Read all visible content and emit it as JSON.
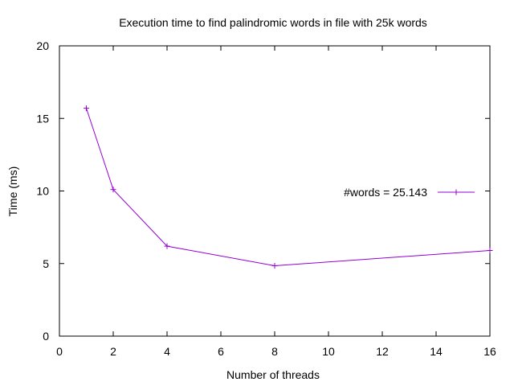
{
  "chart_data": {
    "type": "line",
    "title": "Execution time to find palindromic words in file with 25k words",
    "xlabel": "Number of threads",
    "ylabel": "Time (ms)",
    "xlim": [
      0,
      16
    ],
    "ylim": [
      0,
      20
    ],
    "xticks": [
      "0",
      "2",
      "4",
      "6",
      "8",
      "10",
      "12",
      "14",
      "16"
    ],
    "yticks": [
      "0",
      "5",
      "10",
      "15",
      "20"
    ],
    "grid": false,
    "legend_position": "right",
    "series": [
      {
        "name": "#words = 25.143",
        "color": "#9400d3",
        "marker": "plus",
        "x": [
          1,
          2,
          4,
          8,
          16
        ],
        "y": [
          15.7,
          10.1,
          6.2,
          4.85,
          5.9
        ]
      }
    ]
  }
}
